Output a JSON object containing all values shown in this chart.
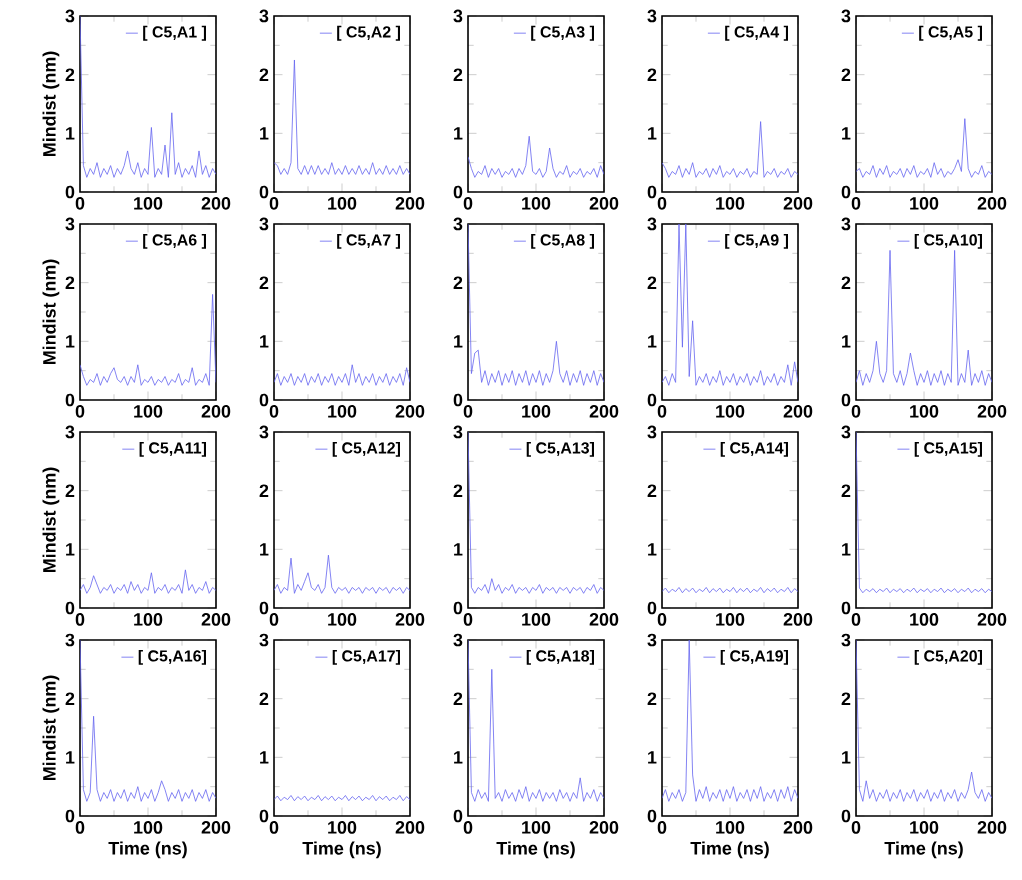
{
  "chart_data": [
    {
      "type": "line",
      "ylabel": "Mindist (nm)",
      "xlim": [
        0,
        200
      ],
      "ylim": [
        0,
        3
      ],
      "xticks": [
        0,
        100,
        200
      ],
      "yticks": [
        0,
        1,
        2,
        3
      ],
      "legend": "top right",
      "x": [
        0,
        5,
        10,
        15,
        20,
        25,
        30,
        35,
        40,
        45,
        50,
        55,
        60,
        65,
        70,
        75,
        80,
        85,
        90,
        95,
        100,
        105,
        110,
        115,
        120,
        125,
        130,
        135,
        140,
        145,
        150,
        155,
        160,
        165,
        170,
        175,
        180,
        185,
        190,
        195,
        200
      ],
      "series": [
        {
          "name": "[ C5,A1 ]",
          "color": "#6464f0",
          "values": [
            3,
            0.45,
            0.25,
            0.4,
            0.3,
            0.5,
            0.25,
            0.4,
            0.3,
            0.45,
            0.25,
            0.4,
            0.3,
            0.45,
            0.7,
            0.4,
            0.3,
            0.5,
            0.25,
            0.4,
            0.3,
            1.1,
            0.25,
            0.4,
            0.3,
            0.8,
            0.25,
            1.35,
            0.3,
            0.5,
            0.25,
            0.4,
            0.3,
            0.45,
            0.25,
            0.7,
            0.3,
            0.45,
            0.25,
            0.4,
            0.3
          ]
        }
      ]
    },
    {
      "type": "line",
      "xlim": [
        0,
        200
      ],
      "ylim": [
        0,
        3
      ],
      "xticks": [
        0,
        100,
        200
      ],
      "yticks": [
        0,
        1,
        2,
        3
      ],
      "legend": "top right",
      "x": [
        0,
        5,
        10,
        15,
        20,
        25,
        30,
        35,
        40,
        45,
        50,
        55,
        60,
        65,
        70,
        75,
        80,
        85,
        90,
        95,
        100,
        105,
        110,
        115,
        120,
        125,
        130,
        135,
        140,
        145,
        150,
        155,
        160,
        165,
        170,
        175,
        180,
        185,
        190,
        195,
        200
      ],
      "series": [
        {
          "name": "[ C5,A2 ]",
          "color": "#6464f0",
          "values": [
            0.5,
            0.45,
            0.3,
            0.4,
            0.3,
            0.5,
            2.25,
            0.4,
            0.3,
            0.45,
            0.3,
            0.45,
            0.3,
            0.45,
            0.3,
            0.4,
            0.3,
            0.5,
            0.3,
            0.4,
            0.3,
            0.45,
            0.3,
            0.4,
            0.3,
            0.45,
            0.3,
            0.4,
            0.3,
            0.5,
            0.3,
            0.4,
            0.3,
            0.45,
            0.3,
            0.4,
            0.3,
            0.45,
            0.3,
            0.4,
            0.3
          ]
        }
      ]
    },
    {
      "type": "line",
      "xlim": [
        0,
        200
      ],
      "ylim": [
        0,
        3
      ],
      "xticks": [
        0,
        100,
        200
      ],
      "yticks": [
        0,
        1,
        2,
        3
      ],
      "legend": "top right",
      "x": [
        0,
        5,
        10,
        15,
        20,
        25,
        30,
        35,
        40,
        45,
        50,
        55,
        60,
        65,
        70,
        75,
        80,
        85,
        90,
        95,
        100,
        105,
        110,
        115,
        120,
        125,
        130,
        135,
        140,
        145,
        150,
        155,
        160,
        165,
        170,
        175,
        180,
        185,
        190,
        195,
        200
      ],
      "series": [
        {
          "name": "[ C5,A3 ]",
          "color": "#6464f0",
          "values": [
            0.6,
            0.4,
            0.25,
            0.35,
            0.3,
            0.45,
            0.25,
            0.4,
            0.3,
            0.4,
            0.25,
            0.35,
            0.3,
            0.4,
            0.25,
            0.4,
            0.3,
            0.45,
            0.95,
            0.35,
            0.3,
            0.4,
            0.25,
            0.35,
            0.75,
            0.4,
            0.25,
            0.35,
            0.3,
            0.45,
            0.25,
            0.35,
            0.3,
            0.4,
            0.25,
            0.35,
            0.3,
            0.4,
            0.25,
            0.45,
            0.3
          ]
        }
      ]
    },
    {
      "type": "line",
      "xlim": [
        0,
        200
      ],
      "ylim": [
        0,
        3
      ],
      "xticks": [
        0,
        100,
        200
      ],
      "yticks": [
        0,
        1,
        2,
        3
      ],
      "legend": "top right",
      "x": [
        0,
        5,
        10,
        15,
        20,
        25,
        30,
        35,
        40,
        45,
        50,
        55,
        60,
        65,
        70,
        75,
        80,
        85,
        90,
        95,
        100,
        105,
        110,
        115,
        120,
        125,
        130,
        135,
        140,
        145,
        150,
        155,
        160,
        165,
        170,
        175,
        180,
        185,
        190,
        195,
        200
      ],
      "series": [
        {
          "name": "[ C5,A4 ]",
          "color": "#6464f0",
          "values": [
            0.5,
            0.4,
            0.25,
            0.35,
            0.3,
            0.45,
            0.25,
            0.4,
            0.3,
            0.5,
            0.25,
            0.35,
            0.3,
            0.4,
            0.25,
            0.4,
            0.3,
            0.45,
            0.25,
            0.35,
            0.3,
            0.4,
            0.25,
            0.35,
            0.3,
            0.4,
            0.25,
            0.35,
            0.3,
            1.2,
            0.25,
            0.35,
            0.3,
            0.4,
            0.25,
            0.35,
            0.3,
            0.4,
            0.25,
            0.35,
            0.3
          ]
        }
      ]
    },
    {
      "type": "line",
      "xlim": [
        0,
        200
      ],
      "ylim": [
        0,
        3
      ],
      "xticks": [
        0,
        100,
        200
      ],
      "yticks": [
        0,
        1,
        2,
        3
      ],
      "legend": "top right",
      "x": [
        0,
        5,
        10,
        15,
        20,
        25,
        30,
        35,
        40,
        45,
        50,
        55,
        60,
        65,
        70,
        75,
        80,
        85,
        90,
        95,
        100,
        105,
        110,
        115,
        120,
        125,
        130,
        135,
        140,
        145,
        150,
        155,
        160,
        165,
        170,
        175,
        180,
        185,
        190,
        195,
        200
      ],
      "series": [
        {
          "name": "[ C5,A5 ]",
          "color": "#6464f0",
          "values": [
            0.35,
            0.4,
            0.25,
            0.35,
            0.3,
            0.45,
            0.25,
            0.4,
            0.3,
            0.45,
            0.25,
            0.35,
            0.3,
            0.4,
            0.25,
            0.4,
            0.3,
            0.45,
            0.25,
            0.35,
            0.3,
            0.4,
            0.25,
            0.5,
            0.3,
            0.4,
            0.25,
            0.35,
            0.3,
            0.4,
            0.55,
            0.35,
            1.25,
            0.4,
            0.25,
            0.35,
            0.3,
            0.45,
            0.25,
            0.35,
            0.3
          ]
        }
      ]
    },
    {
      "type": "line",
      "ylabel": "Mindist (nm)",
      "xlim": [
        0,
        200
      ],
      "ylim": [
        0,
        3
      ],
      "xticks": [
        0,
        100,
        200
      ],
      "yticks": [
        0,
        1,
        2,
        3
      ],
      "legend": "top right",
      "x": [
        0,
        5,
        10,
        15,
        20,
        25,
        30,
        35,
        40,
        45,
        50,
        55,
        60,
        65,
        70,
        75,
        80,
        85,
        90,
        95,
        100,
        105,
        110,
        115,
        120,
        125,
        130,
        135,
        140,
        145,
        150,
        155,
        160,
        165,
        170,
        175,
        180,
        185,
        190,
        195,
        200
      ],
      "series": [
        {
          "name": "[ C5,A6 ]",
          "color": "#6464f0",
          "values": [
            0.6,
            0.4,
            0.25,
            0.35,
            0.3,
            0.45,
            0.25,
            0.4,
            0.3,
            0.45,
            0.55,
            0.35,
            0.3,
            0.4,
            0.25,
            0.4,
            0.3,
            0.6,
            0.25,
            0.35,
            0.3,
            0.4,
            0.25,
            0.35,
            0.3,
            0.4,
            0.25,
            0.35,
            0.3,
            0.45,
            0.25,
            0.35,
            0.3,
            0.55,
            0.25,
            0.35,
            0.3,
            0.45,
            0.25,
            1.8,
            0.3
          ]
        }
      ]
    },
    {
      "type": "line",
      "xlim": [
        0,
        200
      ],
      "ylim": [
        0,
        3
      ],
      "xticks": [
        0,
        100,
        200
      ],
      "yticks": [
        0,
        1,
        2,
        3
      ],
      "legend": "top right",
      "x": [
        0,
        5,
        10,
        15,
        20,
        25,
        30,
        35,
        40,
        45,
        50,
        55,
        60,
        65,
        70,
        75,
        80,
        85,
        90,
        95,
        100,
        105,
        110,
        115,
        120,
        125,
        130,
        135,
        140,
        145,
        150,
        155,
        160,
        165,
        170,
        175,
        180,
        185,
        190,
        195,
        200
      ],
      "series": [
        {
          "name": "[ C5,A7 ]",
          "color": "#6464f0",
          "values": [
            0.3,
            0.45,
            0.25,
            0.4,
            0.3,
            0.45,
            0.25,
            0.4,
            0.3,
            0.45,
            0.25,
            0.4,
            0.3,
            0.45,
            0.25,
            0.4,
            0.3,
            0.45,
            0.25,
            0.4,
            0.3,
            0.45,
            0.25,
            0.6,
            0.3,
            0.45,
            0.25,
            0.4,
            0.3,
            0.45,
            0.25,
            0.4,
            0.3,
            0.45,
            0.25,
            0.4,
            0.3,
            0.45,
            0.25,
            0.55,
            0.3
          ]
        }
      ]
    },
    {
      "type": "line",
      "xlim": [
        0,
        200
      ],
      "ylim": [
        0,
        3
      ],
      "xticks": [
        0,
        100,
        200
      ],
      "yticks": [
        0,
        1,
        2,
        3
      ],
      "legend": "top right",
      "x": [
        0,
        5,
        10,
        15,
        20,
        25,
        30,
        35,
        40,
        45,
        50,
        55,
        60,
        65,
        70,
        75,
        80,
        85,
        90,
        95,
        100,
        105,
        110,
        115,
        120,
        125,
        130,
        135,
        140,
        145,
        150,
        155,
        160,
        165,
        170,
        175,
        180,
        185,
        190,
        195,
        200
      ],
      "series": [
        {
          "name": "[ C5,A8 ]",
          "color": "#6464f0",
          "values": [
            3,
            0.45,
            0.8,
            0.85,
            0.3,
            0.5,
            0.25,
            0.45,
            0.3,
            0.5,
            0.25,
            0.45,
            0.3,
            0.5,
            0.25,
            0.45,
            0.3,
            0.5,
            0.25,
            0.45,
            0.3,
            0.5,
            0.25,
            0.45,
            0.3,
            0.5,
            1.0,
            0.45,
            0.3,
            0.5,
            0.25,
            0.45,
            0.3,
            0.5,
            0.25,
            0.45,
            0.3,
            0.5,
            0.25,
            0.45,
            0.3
          ]
        }
      ]
    },
    {
      "type": "line",
      "xlim": [
        0,
        200
      ],
      "ylim": [
        0,
        3
      ],
      "xticks": [
        0,
        100,
        200
      ],
      "yticks": [
        0,
        1,
        2,
        3
      ],
      "legend": "top right",
      "x": [
        0,
        5,
        10,
        15,
        20,
        25,
        30,
        35,
        40,
        45,
        50,
        55,
        60,
        65,
        70,
        75,
        80,
        85,
        90,
        95,
        100,
        105,
        110,
        115,
        120,
        125,
        130,
        135,
        140,
        145,
        150,
        155,
        160,
        165,
        170,
        175,
        180,
        185,
        190,
        195,
        200
      ],
      "series": [
        {
          "name": "[ C5,A9 ]",
          "color": "#6464f0",
          "values": [
            0.3,
            0.4,
            0.25,
            0.45,
            0.3,
            3,
            0.9,
            3,
            0.4,
            1.35,
            0.25,
            0.4,
            0.3,
            0.45,
            0.25,
            0.4,
            0.3,
            0.5,
            0.25,
            0.4,
            0.3,
            0.45,
            0.25,
            0.4,
            0.3,
            0.45,
            0.25,
            0.4,
            0.3,
            0.5,
            0.25,
            0.4,
            0.3,
            0.45,
            0.25,
            0.4,
            0.3,
            0.6,
            0.25,
            0.65,
            0.3
          ]
        }
      ]
    },
    {
      "type": "line",
      "xlim": [
        0,
        200
      ],
      "ylim": [
        0,
        3
      ],
      "xticks": [
        0,
        100,
        200
      ],
      "yticks": [
        0,
        1,
        2,
        3
      ],
      "legend": "top right",
      "x": [
        0,
        5,
        10,
        15,
        20,
        25,
        30,
        35,
        40,
        45,
        50,
        55,
        60,
        65,
        70,
        75,
        80,
        85,
        90,
        95,
        100,
        105,
        110,
        115,
        120,
        125,
        130,
        135,
        140,
        145,
        150,
        155,
        160,
        165,
        170,
        175,
        180,
        185,
        190,
        195,
        200
      ],
      "series": [
        {
          "name": "[ C5,A10]",
          "color": "#6464f0",
          "values": [
            0.3,
            0.5,
            0.25,
            0.45,
            0.3,
            0.5,
            1.0,
            0.45,
            0.3,
            0.5,
            2.55,
            0.45,
            0.3,
            0.5,
            0.25,
            0.45,
            0.8,
            0.5,
            0.25,
            0.45,
            0.3,
            0.5,
            0.25,
            0.45,
            0.3,
            0.5,
            0.25,
            0.45,
            0.3,
            2.55,
            0.25,
            0.45,
            0.3,
            0.85,
            0.25,
            0.45,
            0.3,
            0.5,
            0.25,
            0.45,
            0.3
          ]
        }
      ]
    },
    {
      "type": "line",
      "ylabel": "Mindist (nm)",
      "xlim": [
        0,
        200
      ],
      "ylim": [
        0,
        3
      ],
      "xticks": [
        0,
        100,
        200
      ],
      "yticks": [
        0,
        1,
        2,
        3
      ],
      "legend": "top right",
      "x": [
        0,
        5,
        10,
        15,
        20,
        25,
        30,
        35,
        40,
        45,
        50,
        55,
        60,
        65,
        70,
        75,
        80,
        85,
        90,
        95,
        100,
        105,
        110,
        115,
        120,
        125,
        130,
        135,
        140,
        145,
        150,
        155,
        160,
        165,
        170,
        175,
        180,
        185,
        190,
        195,
        200
      ],
      "series": [
        {
          "name": "[ C5,A11]",
          "color": "#6464f0",
          "values": [
            0.3,
            0.4,
            0.25,
            0.35,
            0.55,
            0.4,
            0.25,
            0.35,
            0.3,
            0.4,
            0.25,
            0.35,
            0.3,
            0.4,
            0.25,
            0.45,
            0.3,
            0.4,
            0.25,
            0.35,
            0.3,
            0.6,
            0.25,
            0.35,
            0.3,
            0.4,
            0.25,
            0.35,
            0.3,
            0.4,
            0.25,
            0.65,
            0.3,
            0.4,
            0.25,
            0.35,
            0.3,
            0.45,
            0.25,
            0.35,
            0.3
          ]
        }
      ]
    },
    {
      "type": "line",
      "xlim": [
        0,
        200
      ],
      "ylim": [
        0,
        3
      ],
      "xticks": [
        0,
        100,
        200
      ],
      "yticks": [
        0,
        1,
        2,
        3
      ],
      "legend": "top right",
      "x": [
        0,
        5,
        10,
        15,
        20,
        25,
        30,
        35,
        40,
        45,
        50,
        55,
        60,
        65,
        70,
        75,
        80,
        85,
        90,
        95,
        100,
        105,
        110,
        115,
        120,
        125,
        130,
        135,
        140,
        145,
        150,
        155,
        160,
        165,
        170,
        175,
        180,
        185,
        190,
        195,
        200
      ],
      "series": [
        {
          "name": "[ C5,A12]",
          "color": "#6464f0",
          "values": [
            0.3,
            0.4,
            0.25,
            0.35,
            0.3,
            0.85,
            0.25,
            0.4,
            0.3,
            0.45,
            0.6,
            0.35,
            0.3,
            0.4,
            0.25,
            0.35,
            0.9,
            0.35,
            0.25,
            0.35,
            0.3,
            0.35,
            0.25,
            0.35,
            0.3,
            0.35,
            0.25,
            0.35,
            0.3,
            0.35,
            0.25,
            0.35,
            0.3,
            0.35,
            0.25,
            0.35,
            0.3,
            0.35,
            0.25,
            0.35,
            0.3
          ]
        }
      ]
    },
    {
      "type": "line",
      "xlim": [
        0,
        200
      ],
      "ylim": [
        0,
        3
      ],
      "xticks": [
        0,
        100,
        200
      ],
      "yticks": [
        0,
        1,
        2,
        3
      ],
      "legend": "top right",
      "x": [
        0,
        5,
        10,
        15,
        20,
        25,
        30,
        35,
        40,
        45,
        50,
        55,
        60,
        65,
        70,
        75,
        80,
        85,
        90,
        95,
        100,
        105,
        110,
        115,
        120,
        125,
        130,
        135,
        140,
        145,
        150,
        155,
        160,
        165,
        170,
        175,
        180,
        185,
        190,
        195,
        200
      ],
      "series": [
        {
          "name": "[ C5,A13]",
          "color": "#6464f0",
          "values": [
            3,
            0.35,
            0.25,
            0.35,
            0.3,
            0.4,
            0.25,
            0.5,
            0.3,
            0.4,
            0.25,
            0.35,
            0.3,
            0.4,
            0.25,
            0.35,
            0.3,
            0.35,
            0.25,
            0.35,
            0.3,
            0.4,
            0.25,
            0.35,
            0.3,
            0.35,
            0.25,
            0.35,
            0.3,
            0.35,
            0.25,
            0.35,
            0.3,
            0.35,
            0.25,
            0.35,
            0.3,
            0.4,
            0.25,
            0.35,
            0.3
          ]
        }
      ]
    },
    {
      "type": "line",
      "xlim": [
        0,
        200
      ],
      "ylim": [
        0,
        3
      ],
      "xticks": [
        0,
        100,
        200
      ],
      "yticks": [
        0,
        1,
        2,
        3
      ],
      "legend": "top right",
      "x": [
        0,
        5,
        10,
        15,
        20,
        25,
        30,
        35,
        40,
        45,
        50,
        55,
        60,
        65,
        70,
        75,
        80,
        85,
        90,
        95,
        100,
        105,
        110,
        115,
        120,
        125,
        130,
        135,
        140,
        145,
        150,
        155,
        160,
        165,
        170,
        175,
        180,
        185,
        190,
        195,
        200
      ],
      "series": [
        {
          "name": "[ C5,A14]",
          "color": "#6464f0",
          "values": [
            0.28,
            0.34,
            0.26,
            0.32,
            0.28,
            0.35,
            0.26,
            0.33,
            0.28,
            0.34,
            0.26,
            0.32,
            0.28,
            0.35,
            0.26,
            0.33,
            0.28,
            0.34,
            0.26,
            0.32,
            0.28,
            0.35,
            0.26,
            0.33,
            0.28,
            0.34,
            0.26,
            0.32,
            0.28,
            0.35,
            0.26,
            0.33,
            0.28,
            0.34,
            0.26,
            0.32,
            0.28,
            0.35,
            0.26,
            0.33,
            0.28
          ]
        }
      ]
    },
    {
      "type": "line",
      "xlim": [
        0,
        200
      ],
      "ylim": [
        0,
        3
      ],
      "xticks": [
        0,
        100,
        200
      ],
      "yticks": [
        0,
        1,
        2,
        3
      ],
      "legend": "top right",
      "x": [
        0,
        5,
        10,
        15,
        20,
        25,
        30,
        35,
        40,
        45,
        50,
        55,
        60,
        65,
        70,
        75,
        80,
        85,
        90,
        95,
        100,
        105,
        110,
        115,
        120,
        125,
        130,
        135,
        140,
        145,
        150,
        155,
        160,
        165,
        170,
        175,
        180,
        185,
        190,
        195,
        200
      ],
      "series": [
        {
          "name": "[ C5,A15]",
          "color": "#6464f0",
          "values": [
            3,
            0.34,
            0.26,
            0.32,
            0.28,
            0.33,
            0.26,
            0.32,
            0.28,
            0.34,
            0.26,
            0.32,
            0.28,
            0.33,
            0.26,
            0.32,
            0.28,
            0.34,
            0.26,
            0.32,
            0.28,
            0.33,
            0.26,
            0.32,
            0.28,
            0.34,
            0.26,
            0.32,
            0.28,
            0.33,
            0.26,
            0.32,
            0.28,
            0.34,
            0.26,
            0.32,
            0.28,
            0.33,
            0.26,
            0.32,
            0.28
          ]
        }
      ]
    },
    {
      "type": "line",
      "ylabel": "Mindist (nm)",
      "xlabel": "Time (ns)",
      "xlim": [
        0,
        200
      ],
      "ylim": [
        0,
        3
      ],
      "xticks": [
        0,
        100,
        200
      ],
      "yticks": [
        0,
        1,
        2,
        3
      ],
      "legend": "top right",
      "x": [
        0,
        5,
        10,
        15,
        20,
        25,
        30,
        35,
        40,
        45,
        50,
        55,
        60,
        65,
        70,
        75,
        80,
        85,
        90,
        95,
        100,
        105,
        110,
        115,
        120,
        125,
        130,
        135,
        140,
        145,
        150,
        155,
        160,
        165,
        170,
        175,
        180,
        185,
        190,
        195,
        200
      ],
      "series": [
        {
          "name": "[ C5,A16]",
          "color": "#6464f0",
          "values": [
            3,
            0.45,
            0.25,
            0.4,
            1.7,
            0.45,
            0.25,
            0.4,
            0.3,
            0.45,
            0.25,
            0.4,
            0.3,
            0.45,
            0.25,
            0.4,
            0.3,
            0.5,
            0.25,
            0.4,
            0.3,
            0.45,
            0.25,
            0.4,
            0.6,
            0.45,
            0.25,
            0.4,
            0.3,
            0.45,
            0.25,
            0.4,
            0.3,
            0.45,
            0.25,
            0.4,
            0.3,
            0.45,
            0.25,
            0.4,
            0.3
          ]
        }
      ]
    },
    {
      "type": "line",
      "xlabel": "Time (ns)",
      "xlim": [
        0,
        200
      ],
      "ylim": [
        0,
        3
      ],
      "xticks": [
        0,
        100,
        200
      ],
      "yticks": [
        0,
        1,
        2,
        3
      ],
      "legend": "top right",
      "x": [
        0,
        5,
        10,
        15,
        20,
        25,
        30,
        35,
        40,
        45,
        50,
        55,
        60,
        65,
        70,
        75,
        80,
        85,
        90,
        95,
        100,
        105,
        110,
        115,
        120,
        125,
        130,
        135,
        140,
        145,
        150,
        155,
        160,
        165,
        170,
        175,
        180,
        185,
        190,
        195,
        200
      ],
      "series": [
        {
          "name": "[ C5,A17]",
          "color": "#6464f0",
          "values": [
            0.28,
            0.34,
            0.26,
            0.32,
            0.28,
            0.35,
            0.26,
            0.33,
            0.28,
            0.34,
            0.26,
            0.32,
            0.28,
            0.35,
            0.26,
            0.33,
            0.28,
            0.34,
            0.26,
            0.32,
            0.28,
            0.35,
            0.26,
            0.33,
            0.28,
            0.34,
            0.26,
            0.32,
            0.28,
            0.35,
            0.26,
            0.33,
            0.28,
            0.34,
            0.26,
            0.32,
            0.28,
            0.35,
            0.26,
            0.33,
            0.28
          ]
        }
      ]
    },
    {
      "type": "line",
      "xlabel": "Time (ns)",
      "xlim": [
        0,
        200
      ],
      "ylim": [
        0,
        3
      ],
      "xticks": [
        0,
        100,
        200
      ],
      "yticks": [
        0,
        1,
        2,
        3
      ],
      "legend": "top right",
      "x": [
        0,
        5,
        10,
        15,
        20,
        25,
        30,
        35,
        40,
        45,
        50,
        55,
        60,
        65,
        70,
        75,
        80,
        85,
        90,
        95,
        100,
        105,
        110,
        115,
        120,
        125,
        130,
        135,
        140,
        145,
        150,
        155,
        160,
        165,
        170,
        175,
        180,
        185,
        190,
        195,
        200
      ],
      "series": [
        {
          "name": "[ C5,A18]",
          "color": "#6464f0",
          "values": [
            3,
            0.4,
            0.25,
            0.45,
            0.3,
            0.4,
            0.25,
            2.5,
            0.3,
            0.4,
            0.25,
            0.45,
            0.3,
            0.4,
            0.25,
            0.45,
            0.3,
            0.5,
            0.25,
            0.4,
            0.3,
            0.45,
            0.25,
            0.4,
            0.3,
            0.4,
            0.25,
            0.45,
            0.3,
            0.4,
            0.25,
            0.4,
            0.3,
            0.65,
            0.25,
            0.4,
            0.3,
            0.45,
            0.25,
            0.4,
            0.3
          ]
        }
      ]
    },
    {
      "type": "line",
      "xlabel": "Time (ns)",
      "xlim": [
        0,
        200
      ],
      "ylim": [
        0,
        3
      ],
      "xticks": [
        0,
        100,
        200
      ],
      "yticks": [
        0,
        1,
        2,
        3
      ],
      "legend": "top right",
      "x": [
        0,
        5,
        10,
        15,
        20,
        25,
        30,
        35,
        40,
        45,
        50,
        55,
        60,
        65,
        70,
        75,
        80,
        85,
        90,
        95,
        100,
        105,
        110,
        115,
        120,
        125,
        130,
        135,
        140,
        145,
        150,
        155,
        160,
        165,
        170,
        175,
        180,
        185,
        190,
        195,
        200
      ],
      "series": [
        {
          "name": "[ C5,A19]",
          "color": "#6464f0",
          "values": [
            0.3,
            0.45,
            0.25,
            0.4,
            0.3,
            0.45,
            0.25,
            0.4,
            3,
            0.7,
            0.25,
            0.45,
            0.3,
            0.5,
            0.25,
            0.4,
            0.3,
            0.45,
            0.25,
            0.45,
            0.3,
            0.5,
            0.25,
            0.4,
            0.3,
            0.45,
            0.25,
            0.45,
            0.3,
            0.5,
            0.25,
            0.4,
            0.3,
            0.45,
            0.25,
            0.45,
            0.3,
            0.5,
            0.25,
            0.45,
            0.3
          ]
        }
      ]
    },
    {
      "type": "line",
      "xlabel": "Time (ns)",
      "xlim": [
        0,
        200
      ],
      "ylim": [
        0,
        3
      ],
      "xticks": [
        0,
        100,
        200
      ],
      "yticks": [
        0,
        1,
        2,
        3
      ],
      "legend": "top right",
      "x": [
        0,
        5,
        10,
        15,
        20,
        25,
        30,
        35,
        40,
        45,
        50,
        55,
        60,
        65,
        70,
        75,
        80,
        85,
        90,
        95,
        100,
        105,
        110,
        115,
        120,
        125,
        130,
        135,
        140,
        145,
        150,
        155,
        160,
        165,
        170,
        175,
        180,
        185,
        190,
        195,
        200
      ],
      "series": [
        {
          "name": "[ C5,A20]",
          "color": "#6464f0",
          "values": [
            3,
            0.45,
            0.25,
            0.6,
            0.3,
            0.45,
            0.25,
            0.4,
            0.3,
            0.45,
            0.25,
            0.4,
            0.3,
            0.45,
            0.25,
            0.4,
            0.3,
            0.45,
            0.25,
            0.4,
            0.3,
            0.45,
            0.25,
            0.4,
            0.3,
            0.45,
            0.25,
            0.4,
            0.3,
            0.45,
            0.25,
            0.4,
            0.3,
            0.45,
            0.75,
            0.4,
            0.3,
            0.45,
            0.25,
            0.4,
            0.3
          ]
        }
      ]
    }
  ]
}
